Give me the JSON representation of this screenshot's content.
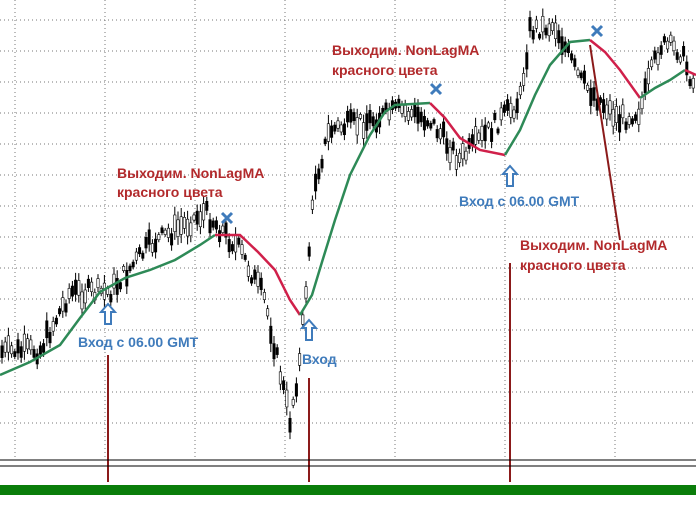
{
  "exits": [
    {
      "line1": "Выходим. NonLagMA",
      "line2": "красного цвета"
    },
    {
      "line1": "Выходим. NonLagMA",
      "line2": "красного цвета"
    },
    {
      "line1": "Выходим. NonLagMA",
      "line2": "красного цвета"
    }
  ],
  "entries": [
    {
      "text": "Вход с 06.00 GMT"
    },
    {
      "text": "Вход"
    },
    {
      "text": "Вход с 06.00 GMT"
    }
  ]
}
